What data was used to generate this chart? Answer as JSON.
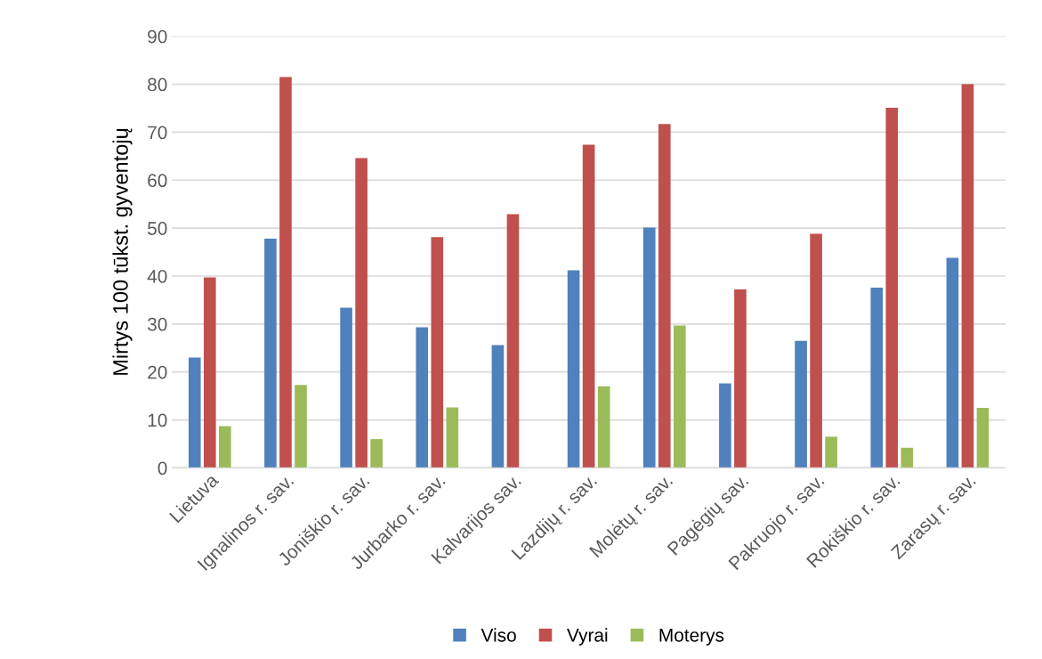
{
  "chart_data": {
    "type": "bar",
    "ylabel": "Mirtys 100 tūkst. gyventojų",
    "categories": [
      "Lietuva",
      "Ignalinos r. sav.",
      "Joniškio r. sav.",
      "Jurbarko r. sav.",
      "Kalvarijos sav.",
      "Lazdijų r. sav.",
      "Molėtų r. sav.",
      "Pagėgių sav.",
      "Pakruojo r. sav.",
      "Rokiškio r. sav.",
      "Zarasų r. sav."
    ],
    "series": [
      {
        "name": "Viso",
        "color": "#4f81bd",
        "values": [
          23.0,
          47.8,
          33.4,
          29.3,
          25.6,
          41.2,
          50.1,
          17.6,
          26.5,
          37.6,
          43.8
        ]
      },
      {
        "name": "Vyrai",
        "color": "#c0504d",
        "values": [
          39.7,
          81.5,
          64.6,
          48.1,
          52.9,
          67.4,
          71.7,
          37.2,
          48.8,
          75.1,
          80.0
        ]
      },
      {
        "name": "Moterys",
        "color": "#9bbb59",
        "values": [
          8.7,
          17.3,
          6.0,
          12.6,
          null,
          17.0,
          29.7,
          null,
          6.5,
          4.2,
          12.5
        ]
      }
    ],
    "ylim": [
      0,
      90
    ],
    "yticks": [
      0,
      10,
      20,
      30,
      40,
      50,
      60,
      70,
      80,
      90
    ],
    "grid": "y",
    "legend": "bottom"
  }
}
